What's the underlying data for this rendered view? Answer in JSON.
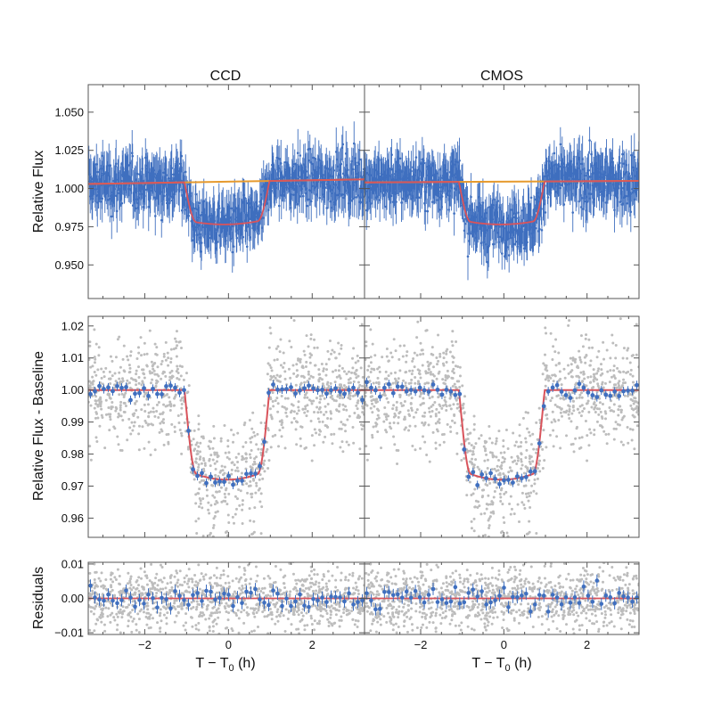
{
  "chart_data": {
    "type": "scatter",
    "columns": [
      {
        "title": "CCD",
        "transit_start": -1.05,
        "transit_end": 0.98
      },
      {
        "title": "CMOS",
        "transit_start": -1.08,
        "transit_end": 0.98
      }
    ],
    "xlabel": "T − T0 (h)",
    "xlabel_main": "T − T",
    "xlabel_sub": "0",
    "xlabel_tail": " (h)",
    "xlim": [
      -3.35,
      3.25
    ],
    "xticks": [
      -2,
      0,
      2
    ],
    "xtick_labels": [
      "−2",
      "0",
      "2"
    ],
    "panels": [
      {
        "id": "raw",
        "ylabel": "Relative Flux",
        "ylim": [
          0.928,
          1.068
        ],
        "yticks": [
          0.95,
          0.975,
          1.0,
          1.025,
          1.05
        ],
        "ytick_labels": [
          "0.950",
          "0.975",
          "1.000",
          "1.025",
          "1.050"
        ],
        "series": [
          "raw data with error bars",
          "transit model",
          "baseline"
        ],
        "baseline_ccd": [
          1.003,
          1.006
        ],
        "baseline_cmos": [
          1.004,
          1.005
        ],
        "depth": 0.028
      },
      {
        "id": "detrended",
        "ylabel": "Relative Flux - Baseline",
        "ylim": [
          0.954,
          1.023
        ],
        "yticks": [
          0.96,
          0.97,
          0.98,
          0.99,
          1.0,
          1.01,
          1.02
        ],
        "ytick_labels": [
          "0.96",
          "0.97",
          "0.98",
          "0.99",
          "1.00",
          "1.01",
          "1.02"
        ],
        "depth": 0.028
      },
      {
        "id": "residuals",
        "ylabel": "Residuals",
        "ylim": [
          -0.0105,
          0.0105
        ],
        "yticks": [
          -0.01,
          0.0,
          0.01
        ],
        "ytick_labels": [
          "−0.01",
          "0.00",
          "0.01"
        ]
      }
    ],
    "colors": {
      "data": "#3f6fbf",
      "model": "#d9535b",
      "baseline": "#e69a2e",
      "raw_points": "#bdbdbd",
      "frame": "#555555"
    }
  }
}
